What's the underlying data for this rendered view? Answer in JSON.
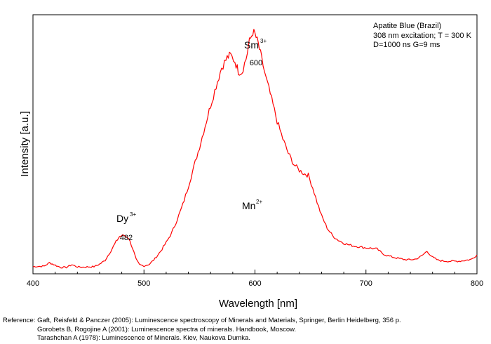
{
  "chart_data": {
    "type": "line",
    "xlabel": "Wavelength [nm]",
    "ylabel": "Intensity [a.u.]",
    "xlim": [
      400,
      800
    ],
    "xticks": [
      "400",
      "500",
      "600",
      "700",
      "800"
    ],
    "series": [
      {
        "color": "#ff0000",
        "x": [
          400,
          410,
          415,
          420,
          425,
          430,
          435,
          440,
          445,
          450,
          455,
          460,
          465,
          470,
          475,
          478,
          482,
          486,
          490,
          493,
          496,
          500,
          505,
          510,
          515,
          520,
          525,
          530,
          535,
          540,
          545,
          550,
          555,
          560,
          565,
          570,
          575,
          578,
          582,
          585,
          588,
          592,
          595,
          598,
          600,
          603,
          606,
          610,
          615,
          620,
          625,
          630,
          635,
          640,
          645,
          648,
          652,
          656,
          660,
          665,
          670,
          675,
          680,
          685,
          690,
          695,
          700,
          705,
          710,
          715,
          720,
          725,
          730,
          735,
          740,
          745,
          750,
          755,
          760,
          765,
          770,
          775,
          780,
          785,
          790,
          795,
          800
        ],
        "y": [
          1.2,
          1.4,
          2.8,
          1.8,
          0.9,
          0.9,
          2.0,
          1.1,
          1.0,
          1.1,
          1.2,
          2.2,
          3.8,
          7.5,
          11.5,
          13.5,
          14.0,
          13.0,
          8.5,
          4.0,
          2.0,
          1.5,
          2.2,
          4.5,
          7.5,
          11.0,
          15.0,
          20.5,
          26.5,
          34.0,
          42.0,
          50.0,
          58.5,
          67.0,
          75.0,
          82.5,
          86.5,
          87.5,
          85.0,
          81.0,
          80.5,
          86.0,
          93.0,
          97.0,
          96.0,
          92.0,
          86.0,
          78.0,
          69.5,
          60.5,
          53.5,
          47.5,
          43.0,
          40.5,
          39.0,
          38.5,
          33.5,
          27.5,
          22.0,
          17.0,
          13.8,
          12.0,
          10.8,
          10.0,
          9.6,
          9.2,
          8.9,
          8.7,
          8.4,
          6.5,
          5.6,
          5.0,
          4.5,
          4.1,
          4.0,
          4.3,
          5.5,
          7.5,
          5.0,
          3.8,
          3.5,
          3.4,
          3.4,
          3.5,
          3.8,
          4.2,
          6.0
        ]
      }
    ],
    "annotations": [
      {
        "id": "sm-peak",
        "ion": "Sm",
        "charge": "3+",
        "value": "600",
        "x": 600
      },
      {
        "id": "dy-peak",
        "ion": "Dy",
        "charge": "3+",
        "value": "482",
        "x": 482
      },
      {
        "id": "mn-band",
        "ion": "Mn",
        "charge": "2+",
        "x": 598
      }
    ]
  },
  "info_box": {
    "line1": "Apatite Blue (Brazil)",
    "line2": "308 nm excitation; T = 300 K",
    "line3": "D=1000 ns  G=9 ms"
  },
  "references": {
    "line1": "Reference: Gaft, Reisfeld & Panczer (2005): Luminescence spectroscopy of Minerals and Materials, Springer, Berlin Heidelberg, 356 p.",
    "line2": "Gorobets B, Rogojine A (2001): Luminescence spectra of minerals. Handbook, Moscow.",
    "line3": "Tarashchan A (1978): Luminescence of Minerals. Kiev, Naukova Dumka."
  }
}
